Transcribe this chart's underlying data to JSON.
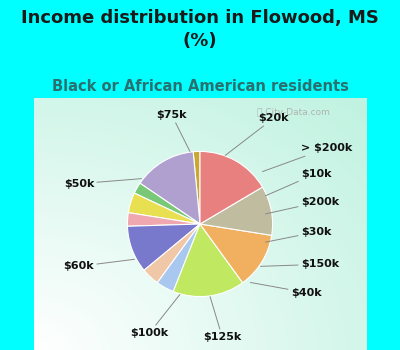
{
  "title": "Income distribution in Flowood, MS\n(%)",
  "subtitle": "Black or African American residents",
  "bg_color": "#00FFFF",
  "chart_bg_colors": [
    "#ffffff",
    "#c8ede0"
  ],
  "watermark": "ⓘ City-Data.com",
  "labels": [
    "$75k",
    "$20k",
    "> $200k",
    "$10k",
    "$200k",
    "$30k",
    "$150k",
    "$40k",
    "$125k",
    "$100k",
    "$60k",
    "$50k"
  ],
  "values": [
    1.5,
    14.0,
    2.5,
    4.5,
    3.0,
    10.5,
    4.0,
    4.0,
    16.0,
    12.5,
    11.0,
    16.5
  ],
  "colors": [
    "#c8a830",
    "#b0a0d0",
    "#78c878",
    "#e8e050",
    "#f0a8b0",
    "#7878cc",
    "#f0c8a8",
    "#a8c8f0",
    "#c0e860",
    "#f0b060",
    "#c0bca0",
    "#e88080"
  ],
  "title_color": "#1a1a1a",
  "subtitle_color": "#2a7070",
  "title_fontsize": 13,
  "subtitle_fontsize": 10.5,
  "label_fontsize": 8,
  "startangle": 90
}
